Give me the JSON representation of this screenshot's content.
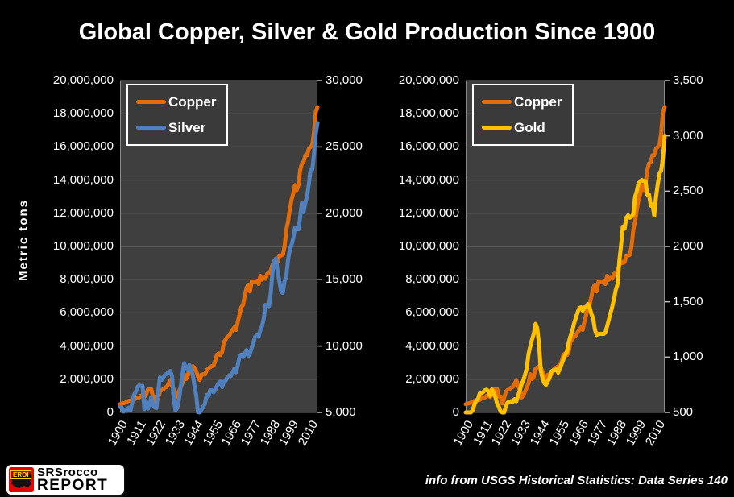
{
  "title": "Global Copper, Silver & Gold Production Since 1900",
  "footer": {
    "source_note": "info from USGS Historical Statistics: Data Series 140",
    "logo": {
      "badge": "EROI",
      "line1": "SRSrocco",
      "line2": "REPORT"
    }
  },
  "chart_data": [
    {
      "type": "line",
      "ylabel": "Metric tons",
      "legend_position": "top-left",
      "grid": "horizontal",
      "x_axis": {
        "start": 1900,
        "end": 2014,
        "tick_values": [
          1900,
          1911,
          1922,
          1933,
          1944,
          1955,
          1966,
          1977,
          1988,
          1999,
          2010
        ],
        "tick_labels": [
          "1900",
          "1911",
          "1922",
          "1933",
          "1944",
          "1955",
          "1966",
          "1977",
          "1988",
          "1999",
          "2010"
        ]
      },
      "left_axis": {
        "min": 0,
        "max": 20000000,
        "tick_values": [
          0,
          2000000,
          4000000,
          6000000,
          8000000,
          10000000,
          12000000,
          14000000,
          16000000,
          18000000,
          20000000
        ],
        "tick_labels": [
          "0",
          "2,000,000",
          "4,000,000",
          "6,000,000",
          "8,000,000",
          "10,000,000",
          "12,000,000",
          "14,000,000",
          "16,000,000",
          "18,000,000",
          "20,000,000"
        ]
      },
      "right_axis": {
        "min": 5000,
        "max": 30000,
        "tick_values": [
          5000,
          10000,
          15000,
          20000,
          25000,
          30000
        ],
        "tick_labels": [
          "5,000",
          "10,000",
          "15,000",
          "20,000",
          "25,000",
          "30,000"
        ]
      },
      "series": [
        {
          "name": "Copper",
          "axis": "left",
          "color": "#E36C09",
          "start_year": 1900,
          "values": [
            495000,
            530000,
            556000,
            589000,
            648000,
            690000,
            722000,
            724000,
            757000,
            846000,
            870000,
            892000,
            1011000,
            1002000,
            934000,
            1060000,
            1370000,
            1400000,
            1410000,
            957000,
            956000,
            540000,
            878000,
            1250000,
            1350000,
            1410000,
            1500000,
            1540000,
            1730000,
            1950000,
            1590000,
            1380000,
            900000,
            1030000,
            1270000,
            1500000,
            1770000,
            2300000,
            2010000,
            2150000,
            2660000,
            2700000,
            2780000,
            2700000,
            2470000,
            2160000,
            1950000,
            2270000,
            2300000,
            2280000,
            2530000,
            2660000,
            2720000,
            2790000,
            2830000,
            3110000,
            3480000,
            3560000,
            3450000,
            3660000,
            4240000,
            4400000,
            4560000,
            4620000,
            4810000,
            4960000,
            5120000,
            4970000,
            5460000,
            5900000,
            6340000,
            6470000,
            7000000,
            7500000,
            7700000,
            7290000,
            7870000,
            7860000,
            7870000,
            7930000,
            7740000,
            8230000,
            8000000,
            8110000,
            8060000,
            8360000,
            8380000,
            8550000,
            8870000,
            9090000,
            9000000,
            9060000,
            9460000,
            9450000,
            9500000,
            10000000,
            11000000,
            11500000,
            12200000,
            12800000,
            13200000,
            13700000,
            13400000,
            13700000,
            14600000,
            15000000,
            15100000,
            15500000,
            15500000,
            15900000,
            16000000,
            16100000,
            16900000,
            18100000,
            18400000
          ]
        },
        {
          "name": "Silver",
          "axis": "right",
          "color": "#5081BE",
          "start_year": 1900,
          "values": [
            5400,
            5380,
            5060,
            5220,
            5110,
            5360,
            5130,
            5730,
            6320,
            6520,
            6900,
            7040,
            6980,
            7010,
            5250,
            5870,
            5280,
            5450,
            6150,
            5550,
            5390,
            5320,
            6520,
            7650,
            7450,
            7620,
            7850,
            7900,
            8040,
            8120,
            7740,
            6080,
            5150,
            5330,
            5960,
            6890,
            7860,
            8700,
            8330,
            8300,
            8570,
            8200,
            7800,
            7010,
            6240,
            5020,
            5000,
            5210,
            5430,
            5640,
            6320,
            6210,
            6670,
            6670,
            6520,
            6700,
            7000,
            7230,
            7330,
            6910,
            7310,
            7390,
            7670,
            7800,
            7730,
            8000,
            8300,
            8030,
            8560,
            9200,
            9360,
            9170,
            9380,
            9700,
            9250,
            9430,
            9840,
            10300,
            10700,
            10800,
            10700,
            11200,
            11500,
            12100,
            13100,
            13100,
            13000,
            14000,
            15500,
            16400,
            16600,
            15600,
            14900,
            14100,
            14000,
            14900,
            15200,
            16500,
            17200,
            17600,
            18100,
            18900,
            18800,
            18800,
            19700,
            20800,
            20100,
            20800,
            21300,
            22200,
            23300,
            23300,
            24500,
            26000,
            26800
          ]
        }
      ]
    },
    {
      "type": "line",
      "ylabel": "",
      "legend_position": "top-left",
      "grid": "horizontal",
      "x_axis": {
        "start": 1900,
        "end": 2014,
        "tick_values": [
          1900,
          1911,
          1922,
          1933,
          1944,
          1955,
          1966,
          1977,
          1988,
          1999,
          2010
        ],
        "tick_labels": [
          "1900",
          "1911",
          "1922",
          "1933",
          "1944",
          "1955",
          "1966",
          "1977",
          "1988",
          "1999",
          "2010"
        ]
      },
      "left_axis": {
        "min": 0,
        "max": 20000000,
        "tick_values": [
          0,
          2000000,
          4000000,
          6000000,
          8000000,
          10000000,
          12000000,
          14000000,
          16000000,
          18000000,
          20000000
        ],
        "tick_labels": [
          "0",
          "2,000,000",
          "4,000,000",
          "6,000,000",
          "8,000,000",
          "10,000,000",
          "12,000,000",
          "14,000,000",
          "16,000,000",
          "18,000,000",
          "20,000,000"
        ]
      },
      "right_axis": {
        "min": 500,
        "max": 3500,
        "tick_values": [
          500,
          1000,
          1500,
          2000,
          2500,
          3000,
          3500
        ],
        "tick_labels": [
          "500",
          "1,000",
          "1,500",
          "2,000",
          "2,500",
          "3,000",
          "3,500"
        ]
      },
      "series": [
        {
          "name": "Copper",
          "axis": "left",
          "color": "#E36C09",
          "start_year": 1900,
          "values": [
            495000,
            530000,
            556000,
            589000,
            648000,
            690000,
            722000,
            724000,
            757000,
            846000,
            870000,
            892000,
            1011000,
            1002000,
            934000,
            1060000,
            1370000,
            1400000,
            1410000,
            957000,
            956000,
            540000,
            878000,
            1250000,
            1350000,
            1410000,
            1500000,
            1540000,
            1730000,
            1950000,
            1590000,
            1380000,
            900000,
            1030000,
            1270000,
            1500000,
            1770000,
            2300000,
            2010000,
            2150000,
            2660000,
            2700000,
            2780000,
            2700000,
            2470000,
            2160000,
            1950000,
            2270000,
            2300000,
            2280000,
            2530000,
            2660000,
            2720000,
            2790000,
            2830000,
            3110000,
            3480000,
            3560000,
            3450000,
            3660000,
            4240000,
            4400000,
            4560000,
            4620000,
            4810000,
            4960000,
            5120000,
            4970000,
            5460000,
            5900000,
            6340000,
            6470000,
            7000000,
            7500000,
            7700000,
            7290000,
            7870000,
            7860000,
            7870000,
            7930000,
            7740000,
            8230000,
            8000000,
            8110000,
            8060000,
            8360000,
            8380000,
            8550000,
            8870000,
            9090000,
            9000000,
            9060000,
            9460000,
            9450000,
            9500000,
            10000000,
            11000000,
            11500000,
            12200000,
            12800000,
            13200000,
            13700000,
            13400000,
            13700000,
            14600000,
            15000000,
            15100000,
            15500000,
            15500000,
            15900000,
            16000000,
            16100000,
            16900000,
            18100000,
            18400000
          ]
        },
        {
          "name": "Gold",
          "axis": "right",
          "color": "#FFC000",
          "start_year": 1900,
          "values": [
            386,
            395,
            451,
            466,
            521,
            570,
            608,
            620,
            671,
            675,
            685,
            700,
            705,
            692,
            650,
            708,
            685,
            640,
            580,
            550,
            508,
            497,
            480,
            555,
            590,
            590,
            602,
            597,
            620,
            600,
            650,
            700,
            754,
            790,
            842,
            900,
            1030,
            1100,
            1160,
            1210,
            1300,
            1260,
            1120,
            880,
            810,
            765,
            750,
            780,
            810,
            870,
            880,
            880,
            890,
            860,
            900,
            940,
            980,
            1020,
            1050,
            1130,
            1190,
            1230,
            1300,
            1350,
            1400,
            1440,
            1450,
            1420,
            1450,
            1450,
            1480,
            1450,
            1390,
            1350,
            1250,
            1200,
            1210,
            1210,
            1210,
            1210,
            1220,
            1280,
            1340,
            1400,
            1460,
            1530,
            1610,
            1660,
            1870,
            2010,
            2180,
            2160,
            2260,
            2280,
            2260,
            2270,
            2290,
            2450,
            2500,
            2570,
            2590,
            2600,
            2590,
            2590,
            2470,
            2470,
            2370,
            2380,
            2280,
            2450,
            2560,
            2660,
            2690,
            2800,
            3000
          ]
        }
      ]
    }
  ]
}
